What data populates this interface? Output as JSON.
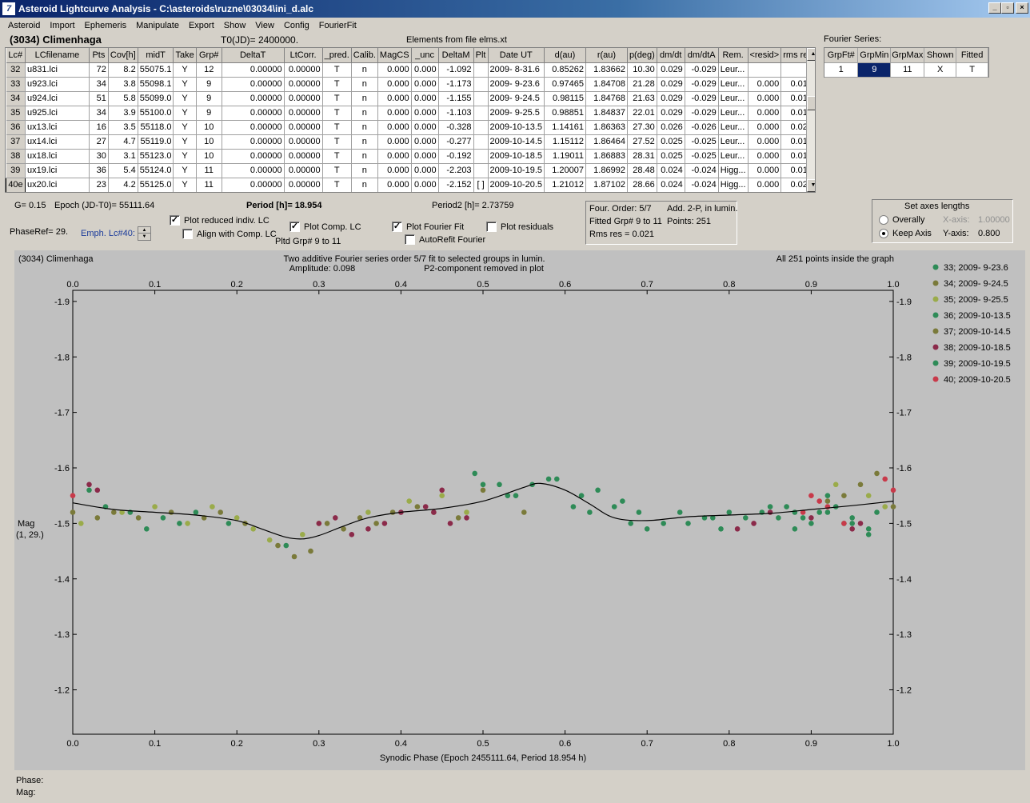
{
  "window": {
    "title": "Asteroid Lightcurve Analysis - C:\\asteroids\\ruzne\\03034\\ini_d.alc",
    "app_icon": "7",
    "buttons": [
      "_",
      "▫",
      "×"
    ]
  },
  "menu": [
    "Asteroid",
    "Import",
    "Ephemeris",
    "Manipulate",
    "Export",
    "Show",
    "View",
    "Config",
    "FourierFit"
  ],
  "header": {
    "asteroid": "(3034) Climenhaga",
    "t0": "T0(JD)= 2400000.",
    "elements": "Elements from file elms.xt",
    "fourier_series": "Fourier Series:"
  },
  "grid": {
    "columns": [
      "Lc#",
      "LCfilename",
      "Pts",
      "Cov[h]",
      "midT",
      "Take",
      "Grp#",
      "DeltaT",
      "LtCorr.",
      "_pred.",
      "Calib.",
      "MagCS",
      "_unc",
      "DeltaM",
      "Plt",
      "Date UT",
      "d(au)",
      "r(au)",
      "p(deg)",
      "dm/dt",
      "dm/dtA",
      "Rem.",
      "<resid>",
      "rms res"
    ],
    "rows": [
      [
        "32",
        "u831.lci",
        "72",
        "8.2",
        "55075.1",
        "Y",
        "12",
        "0.00000",
        "0.00000",
        "T",
        "n",
        "0.000",
        "0.000",
        "-1.092",
        "",
        "2009- 8-31.6",
        "0.85262",
        "1.83662",
        "10.30",
        "0.029",
        "-0.029",
        "Leur...",
        "",
        ""
      ],
      [
        "33",
        "u923.lci",
        "34",
        "3.8",
        "55098.1",
        "Y",
        "9",
        "0.00000",
        "0.00000",
        "T",
        "n",
        "0.000",
        "0.000",
        "-1.173",
        "",
        "2009- 9-23.6",
        "0.97465",
        "1.84708",
        "21.28",
        "0.029",
        "-0.029",
        "Leur...",
        "0.000",
        "0.019"
      ],
      [
        "34",
        "u924.lci",
        "51",
        "5.8",
        "55099.0",
        "Y",
        "9",
        "0.00000",
        "0.00000",
        "T",
        "n",
        "0.000",
        "0.000",
        "-1.155",
        "",
        "2009- 9-24.5",
        "0.98115",
        "1.84768",
        "21.63",
        "0.029",
        "-0.029",
        "Leur...",
        "0.000",
        "0.017"
      ],
      [
        "35",
        "u925.lci",
        "34",
        "3.9",
        "55100.0",
        "Y",
        "9",
        "0.00000",
        "0.00000",
        "T",
        "n",
        "0.000",
        "0.000",
        "-1.103",
        "",
        "2009- 9-25.5",
        "0.98851",
        "1.84837",
        "22.01",
        "0.029",
        "-0.029",
        "Leur...",
        "0.000",
        "0.016"
      ],
      [
        "36",
        "ux13.lci",
        "16",
        "3.5",
        "55118.0",
        "Y",
        "10",
        "0.00000",
        "0.00000",
        "T",
        "n",
        "0.000",
        "0.000",
        "-0.328",
        "",
        "2009-10-13.5",
        "1.14161",
        "1.86363",
        "27.30",
        "0.026",
        "-0.026",
        "Leur...",
        "0.000",
        "0.028"
      ],
      [
        "37",
        "ux14.lci",
        "27",
        "4.7",
        "55119.0",
        "Y",
        "10",
        "0.00000",
        "0.00000",
        "T",
        "n",
        "0.000",
        "0.000",
        "-0.277",
        "",
        "2009-10-14.5",
        "1.15112",
        "1.86464",
        "27.52",
        "0.025",
        "-0.025",
        "Leur...",
        "0.000",
        "0.015"
      ],
      [
        "38",
        "ux18.lci",
        "30",
        "3.1",
        "55123.0",
        "Y",
        "10",
        "0.00000",
        "0.00000",
        "T",
        "n",
        "0.000",
        "0.000",
        "-0.192",
        "",
        "2009-10-18.5",
        "1.19011",
        "1.86883",
        "28.31",
        "0.025",
        "-0.025",
        "Leur...",
        "0.000",
        "0.019"
      ],
      [
        "39",
        "ux19.lci",
        "36",
        "5.4",
        "55124.0",
        "Y",
        "11",
        "0.00000",
        "0.00000",
        "T",
        "n",
        "0.000",
        "0.000",
        "-2.203",
        "",
        "2009-10-19.5",
        "1.20007",
        "1.86992",
        "28.48",
        "0.024",
        "-0.024",
        "Higg...",
        "0.000",
        "0.019"
      ],
      [
        "40e",
        "ux20.lci",
        "23",
        "4.2",
        "55125.0",
        "Y",
        "11",
        "0.00000",
        "0.00000",
        "T",
        "n",
        "0.000",
        "0.000",
        "-2.152",
        "[ ]",
        "2009-10-20.5",
        "1.21012",
        "1.87102",
        "28.66",
        "0.024",
        "-0.024",
        "Higg...",
        "0.000",
        "0.024"
      ]
    ]
  },
  "fourier_grid": {
    "columns": [
      "GrpFt#",
      "GrpMin",
      "GrpMax",
      "Shown",
      "Fitted"
    ],
    "row": [
      "1",
      "9",
      "11",
      "X",
      "T"
    ]
  },
  "controls": {
    "g": "G= 0.15",
    "epoch": "Epoch (JD-T0)= 55111.64",
    "period": "Period [h]= 18.954",
    "period2": "Period2 [h]= 2.73759",
    "phaseref": "PhaseRef= 29.",
    "emph": "Emph. Lc#40:",
    "plot_reduced": "Plot reduced indiv. LC",
    "align_comp": "Align with Comp. LC",
    "plot_comp": "Plot Comp. LC",
    "pltd_grp": "Pltd Grp#  9   to   11",
    "plot_fourier": "Plot Fourier Fit",
    "autorefit": "AutoRefit Fourier",
    "plot_residuals": "Plot residuals",
    "checked": "✓"
  },
  "info_box": {
    "four_order": "Four. Order:  5/7",
    "add": "Add. 2-P, in lumin.",
    "fitted": "Fitted Grp# 9 to 11",
    "points": "Points: 251",
    "rms": "Rms res     = 0.021"
  },
  "axes_box": {
    "title": "Set axes lengths",
    "overally": "Overally",
    "keep_axis": "Keep Axis",
    "x_axis_label": "X-axis:",
    "x_axis_value": "1.00000",
    "y_axis_label": "Y-axis:",
    "y_axis_value": "0.800"
  },
  "status": {
    "phase": "Phase:",
    "mag": "Mag:"
  },
  "chart_data": {
    "type": "scatter",
    "title": "(3034) Climenhaga",
    "subtitle_1": "Two additive Fourier series order 5/7 fit to selected groups in lumin.",
    "subtitle_2": "Amplitude: 0.098",
    "subtitle_3": "P2-component removed in plot",
    "note": "All 251 points inside the graph",
    "xlabel": "Synodic Phase (Epoch 2455111.64, Period 18.954 h)",
    "ylabel_1": "Mag",
    "ylabel_2": "(1, 29.)",
    "xlim": [
      0.0,
      1.0
    ],
    "ylim": [
      -1.92,
      -1.12
    ],
    "y_inverted": true,
    "x_ticks": [
      "0.0",
      "0.1",
      "0.2",
      "0.3",
      "0.4",
      "0.5",
      "0.6",
      "0.7",
      "0.8",
      "0.9",
      "1.0"
    ],
    "y_ticks": [
      "-1.9",
      "-1.8",
      "-1.7",
      "-1.6",
      "-1.5",
      "-1.4",
      "-1.3",
      "-1.2"
    ],
    "legend_position": "right",
    "fit_curve": {
      "x": [
        0.0,
        0.05,
        0.1,
        0.15,
        0.2,
        0.23,
        0.26,
        0.28,
        0.3,
        0.33,
        0.36,
        0.4,
        0.45,
        0.5,
        0.55,
        0.57,
        0.6,
        0.63,
        0.66,
        0.7,
        0.75,
        0.8,
        0.85,
        0.9,
        0.95,
        1.0
      ],
      "y": [
        -1.537,
        -1.525,
        -1.52,
        -1.515,
        -1.505,
        -1.49,
        -1.475,
        -1.472,
        -1.478,
        -1.495,
        -1.51,
        -1.52,
        -1.527,
        -1.54,
        -1.565,
        -1.572,
        -1.56,
        -1.535,
        -1.51,
        -1.505,
        -1.512,
        -1.515,
        -1.518,
        -1.525,
        -1.532,
        -1.54
      ]
    },
    "series": [
      {
        "name": "33; 2009- 9-23.6",
        "color": "#2e8b57",
        "x": [
          0.02,
          0.04,
          0.07,
          0.09,
          0.11,
          0.13,
          0.15,
          0.19,
          0.26,
          0.49,
          0.5,
          0.53,
          0.56,
          0.58,
          0.61,
          0.63,
          0.66,
          0.68,
          0.7,
          0.75,
          0.78,
          0.8,
          0.85,
          0.88,
          0.9,
          0.92,
          0.95,
          0.97
        ],
        "y": [
          -1.56,
          -1.53,
          -1.52,
          -1.49,
          -1.51,
          -1.5,
          -1.52,
          -1.5,
          -1.46,
          -1.59,
          -1.57,
          -1.55,
          -1.57,
          -1.58,
          -1.53,
          -1.52,
          -1.53,
          -1.5,
          -1.49,
          -1.5,
          -1.51,
          -1.52,
          -1.53,
          -1.49,
          -1.5,
          -1.52,
          -1.5,
          -1.48
        ]
      },
      {
        "name": "34; 2009- 9-24.5",
        "color": "#7a7a3a",
        "x": [
          0.0,
          0.03,
          0.05,
          0.08,
          0.12,
          0.16,
          0.18,
          0.21,
          0.25,
          0.27,
          0.29,
          0.92,
          0.94,
          0.96,
          0.98,
          1.0
        ],
        "y": [
          -1.52,
          -1.51,
          -1.52,
          -1.51,
          -1.52,
          -1.51,
          -1.52,
          -1.5,
          -1.46,
          -1.44,
          -1.45,
          -1.54,
          -1.55,
          -1.57,
          -1.59,
          -1.53
        ]
      },
      {
        "name": "35; 2009- 9-25.5",
        "color": "#9aab4a",
        "x": [
          0.01,
          0.06,
          0.1,
          0.14,
          0.17,
          0.2,
          0.22,
          0.24,
          0.28,
          0.3,
          0.36,
          0.41,
          0.45,
          0.48,
          0.93,
          0.97,
          0.99
        ],
        "y": [
          -1.5,
          -1.52,
          -1.53,
          -1.5,
          -1.53,
          -1.51,
          -1.49,
          -1.47,
          -1.48,
          -1.5,
          -1.52,
          -1.54,
          -1.55,
          -1.52,
          -1.57,
          -1.55,
          -1.53
        ]
      },
      {
        "name": "36; 2009-10-13.5",
        "color": "#2e8b57",
        "x": [
          0.52,
          0.54,
          0.59,
          0.62,
          0.64,
          0.67,
          0.69,
          0.72,
          0.74,
          0.77,
          0.79,
          0.82,
          0.84
        ],
        "y": [
          -1.57,
          -1.55,
          -1.58,
          -1.55,
          -1.56,
          -1.54,
          -1.52,
          -1.5,
          -1.52,
          -1.51,
          -1.49,
          -1.51,
          -1.52
        ]
      },
      {
        "name": "37; 2009-10-14.5",
        "color": "#7a7a3a",
        "x": [
          0.31,
          0.33,
          0.35,
          0.37,
          0.39,
          0.42,
          0.44,
          0.47,
          0.5,
          0.55
        ],
        "y": [
          -1.5,
          -1.49,
          -1.51,
          -1.5,
          -1.52,
          -1.53,
          -1.52,
          -1.51,
          -1.56,
          -1.52
        ]
      },
      {
        "name": "38; 2009-10-18.5",
        "color": "#8b2a4a",
        "x": [
          0.02,
          0.03,
          0.3,
          0.32,
          0.34,
          0.36,
          0.38,
          0.4,
          0.43,
          0.44,
          0.45,
          0.46,
          0.48,
          0.81,
          0.83,
          0.85,
          0.9,
          0.95,
          0.96
        ],
        "y": [
          -1.57,
          -1.56,
          -1.5,
          -1.51,
          -1.48,
          -1.49,
          -1.5,
          -1.52,
          -1.53,
          -1.52,
          -1.56,
          -1.5,
          -1.51,
          -1.49,
          -1.5,
          -1.52,
          -1.51,
          -1.49,
          -1.5
        ]
      },
      {
        "name": "39; 2009-10-19.5",
        "color": "#2e8b57",
        "x": [
          0.86,
          0.87,
          0.88,
          0.89,
          0.91,
          0.92,
          0.93,
          0.94,
          0.95,
          0.97,
          0.98
        ],
        "y": [
          -1.51,
          -1.53,
          -1.52,
          -1.51,
          -1.52,
          -1.55,
          -1.53,
          -1.5,
          -1.51,
          -1.49,
          -1.52
        ]
      },
      {
        "name": "40; 2009-10-20.5",
        "color": "#c83a4a",
        "x": [
          0.0,
          0.89,
          0.9,
          0.91,
          0.92,
          0.94,
          0.99,
          1.0
        ],
        "y": [
          -1.55,
          -1.52,
          -1.55,
          -1.54,
          -1.53,
          -1.5,
          -1.58,
          -1.56
        ]
      }
    ]
  }
}
